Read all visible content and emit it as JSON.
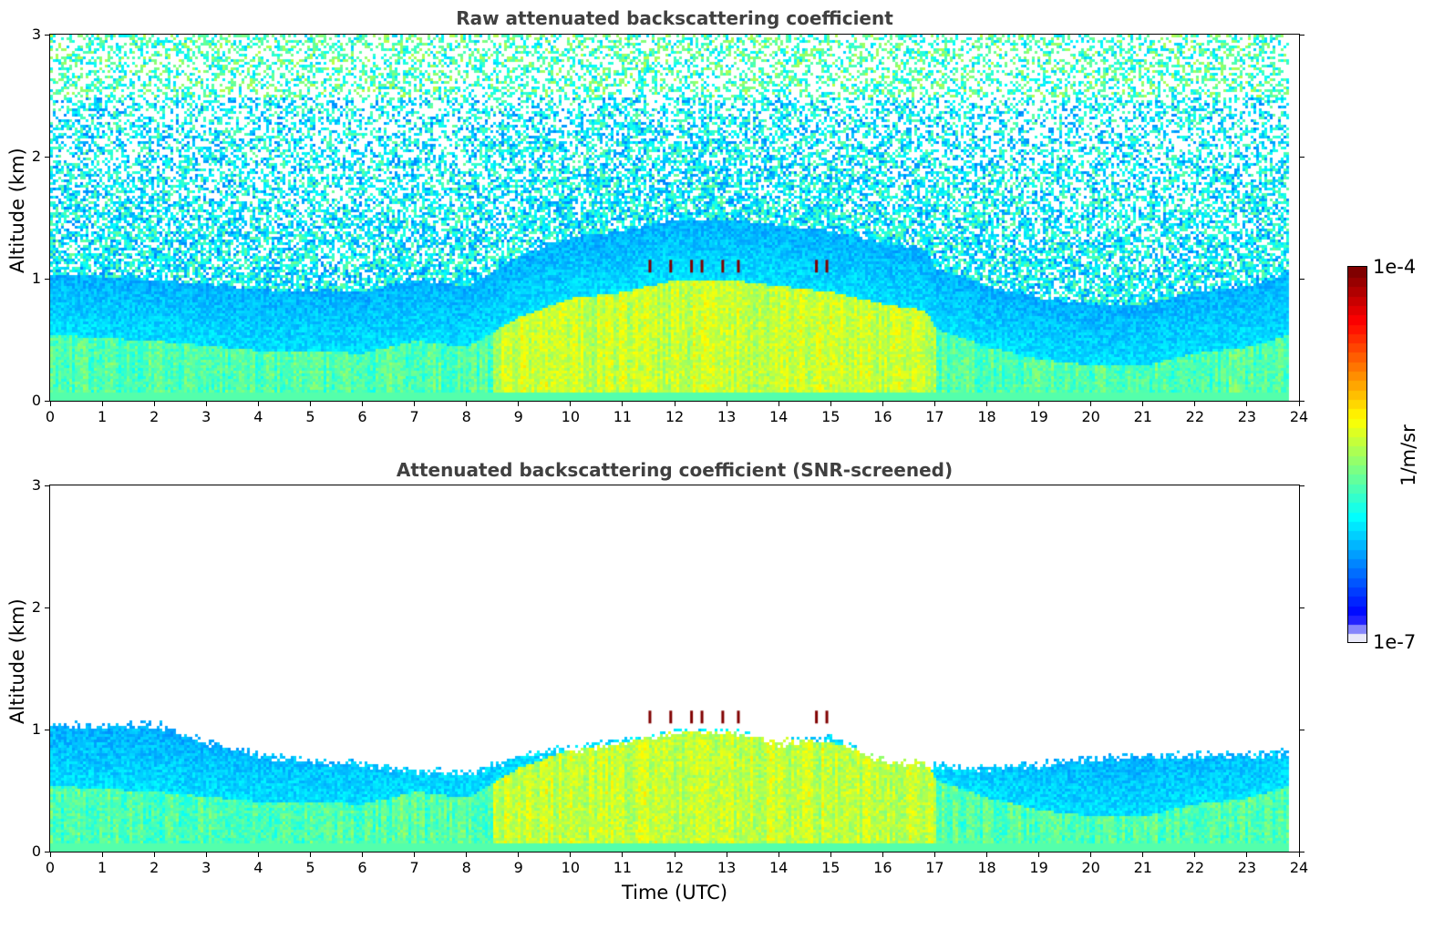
{
  "chart_data": [
    {
      "type": "heatmap",
      "title": "Raw attenuated backscattering coefficient",
      "xlabel": "",
      "ylabel": "Altitude (km)",
      "xlim": [
        0,
        24
      ],
      "ylim": [
        0,
        3
      ],
      "x_ticks": [
        "0",
        "1",
        "2",
        "3",
        "4",
        "5",
        "6",
        "7",
        "8",
        "9",
        "10",
        "11",
        "12",
        "13",
        "14",
        "15",
        "16",
        "17",
        "18",
        "19",
        "20",
        "21",
        "22",
        "23",
        "24"
      ],
      "y_ticks": [
        "0",
        "1",
        "2",
        "3"
      ],
      "data_end_time": 23.8,
      "screened": false,
      "boundary_layer_top_km": [
        [
          0,
          0.55
        ],
        [
          2,
          0.5
        ],
        [
          4,
          0.42
        ],
        [
          6,
          0.4
        ],
        [
          7,
          0.5
        ],
        [
          8,
          0.45
        ],
        [
          9,
          0.7
        ],
        [
          10,
          0.85
        ],
        [
          11,
          0.9
        ],
        [
          12,
          1.0
        ],
        [
          13,
          1.0
        ],
        [
          14,
          0.95
        ],
        [
          15,
          0.9
        ],
        [
          16,
          0.8
        ],
        [
          16.8,
          0.75
        ],
        [
          17,
          0.6
        ],
        [
          18,
          0.45
        ],
        [
          19,
          0.35
        ],
        [
          20,
          0.3
        ],
        [
          21,
          0.3
        ],
        [
          22,
          0.4
        ],
        [
          23,
          0.45
        ],
        [
          23.8,
          0.55
        ]
      ]
    },
    {
      "type": "heatmap",
      "title": "Attenuated backscattering coefficient (SNR-screened)",
      "xlabel": "Time (UTC)",
      "ylabel": "Altitude (km)",
      "xlim": [
        0,
        24
      ],
      "ylim": [
        0,
        3
      ],
      "x_ticks": [
        "0",
        "1",
        "2",
        "3",
        "4",
        "5",
        "6",
        "7",
        "8",
        "9",
        "10",
        "11",
        "12",
        "13",
        "14",
        "15",
        "16",
        "17",
        "18",
        "19",
        "20",
        "21",
        "22",
        "23",
        "24"
      ],
      "y_ticks": [
        "0",
        "1",
        "2",
        "3"
      ],
      "data_end_time": 23.8,
      "screened": true,
      "signal_top_km": [
        [
          0,
          1.05
        ],
        [
          2,
          1.05
        ],
        [
          3,
          0.9
        ],
        [
          4,
          0.8
        ],
        [
          5,
          0.75
        ],
        [
          6,
          0.72
        ],
        [
          7,
          0.68
        ],
        [
          8,
          0.65
        ],
        [
          9,
          0.8
        ],
        [
          10,
          0.85
        ],
        [
          11,
          0.92
        ],
        [
          12,
          1.0
        ],
        [
          13,
          1.0
        ],
        [
          14,
          0.9
        ],
        [
          15,
          0.95
        ],
        [
          16,
          0.75
        ],
        [
          17,
          0.72
        ],
        [
          18,
          0.7
        ],
        [
          19,
          0.72
        ],
        [
          20,
          0.78
        ],
        [
          21,
          0.8
        ],
        [
          22,
          0.8
        ],
        [
          23,
          0.8
        ],
        [
          23.8,
          0.82
        ]
      ]
    }
  ],
  "colorbar": {
    "label": "1/m/sr",
    "max_label": "1e-4",
    "min_label": "1e-7",
    "scale": "log",
    "colormap": "jet",
    "colors": [
      "#e8e8f8",
      "#8c8cff",
      "#0000ff",
      "#00a0ff",
      "#00ffc0",
      "#a0ff40",
      "#ffff00",
      "#ff8000",
      "#ff0000",
      "#800000"
    ]
  }
}
